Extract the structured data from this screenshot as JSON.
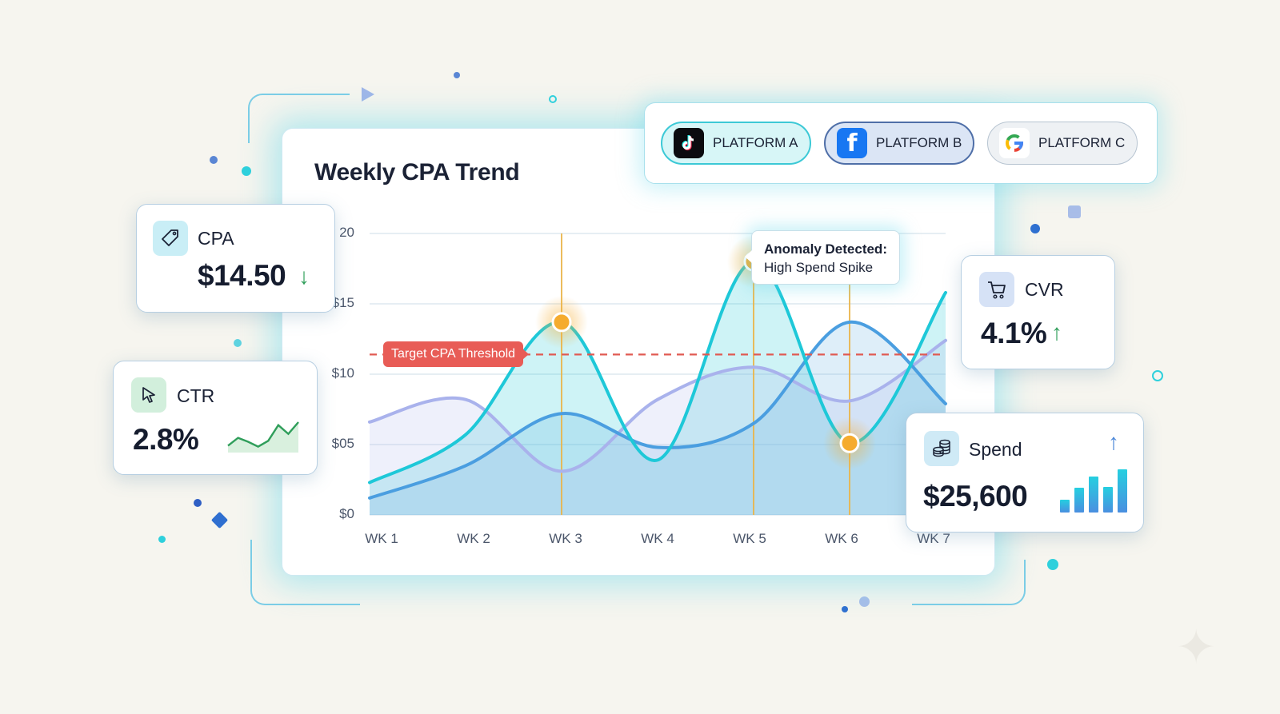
{
  "colors": {
    "background": "#f6f5ef",
    "series_primary": "#1ec8d8",
    "series_secondary": "#4a9ee0",
    "series_tertiary": "#a9b2ec",
    "threshold": "#e05a52",
    "anomaly_marker": "#f5ab2e",
    "trend_down": "#2f9e5a",
    "trend_up": "#2f9e5a",
    "spend_up": "#4a86d8"
  },
  "platforms": [
    {
      "label": "PLATFORM A",
      "icon": "tiktok-icon",
      "state": "active"
    },
    {
      "label": "PLATFORM B",
      "icon": "facebook-icon",
      "state": "selected"
    },
    {
      "label": "PLATFORM C",
      "icon": "google-icon",
      "state": "default"
    }
  ],
  "kpis": {
    "cpa": {
      "label": "CPA",
      "value": "$14.50",
      "icon": "tag-icon",
      "trend": "down"
    },
    "ctr": {
      "label": "CTR",
      "value": "2.8%",
      "icon": "cursor-icon",
      "sparkline": [
        2.2,
        3.0,
        2.6,
        2.1,
        2.7,
        4.3,
        3.4,
        4.6
      ]
    },
    "cvr": {
      "label": "CVR",
      "value": "4.1%",
      "icon": "cart-icon",
      "trend": "up"
    },
    "spend": {
      "label": "Spend",
      "value": "$25,600",
      "icon": "coins-icon",
      "trend": "up",
      "bars": [
        0.29,
        0.57,
        0.83,
        0.6,
        1.0
      ]
    }
  },
  "chart_data": {
    "type": "line",
    "title": "Weekly CPA Trend",
    "categories": [
      "WK 1",
      "WK 2",
      "WK 3",
      "WK 4",
      "WK 5",
      "WK 6",
      "WK 7"
    ],
    "y_ticks": [
      0,
      5,
      10,
      15,
      20
    ],
    "y_tick_labels": [
      "$0",
      "$05",
      "$10",
      "$15",
      "20"
    ],
    "ylim": [
      0,
      20
    ],
    "grid": true,
    "series": [
      {
        "values": [
          2.3,
          5.7,
          13.7,
          3.9,
          18.0,
          5.1,
          15.8
        ],
        "color": "#1ec8d8",
        "filled": true
      },
      {
        "values": [
          1.2,
          3.5,
          7.2,
          4.8,
          6.5,
          13.7,
          7.9
        ],
        "color": "#4a9ee0",
        "filled": true
      },
      {
        "values": [
          6.6,
          8.2,
          3.1,
          8.2,
          10.5,
          8.1,
          12.4
        ],
        "color": "#a9b2ec",
        "filled": true
      }
    ],
    "threshold": {
      "label": "Target CPA Threshold",
      "value": 11.4
    },
    "markers": [
      {
        "category": "WK 3",
        "value": 13.7
      },
      {
        "category": "WK 5",
        "value": 18.0
      },
      {
        "category": "WK 6",
        "value": 5.1
      }
    ],
    "annotation": {
      "line1": "Anomaly Detected:",
      "line2": "High Spend Spike"
    }
  }
}
